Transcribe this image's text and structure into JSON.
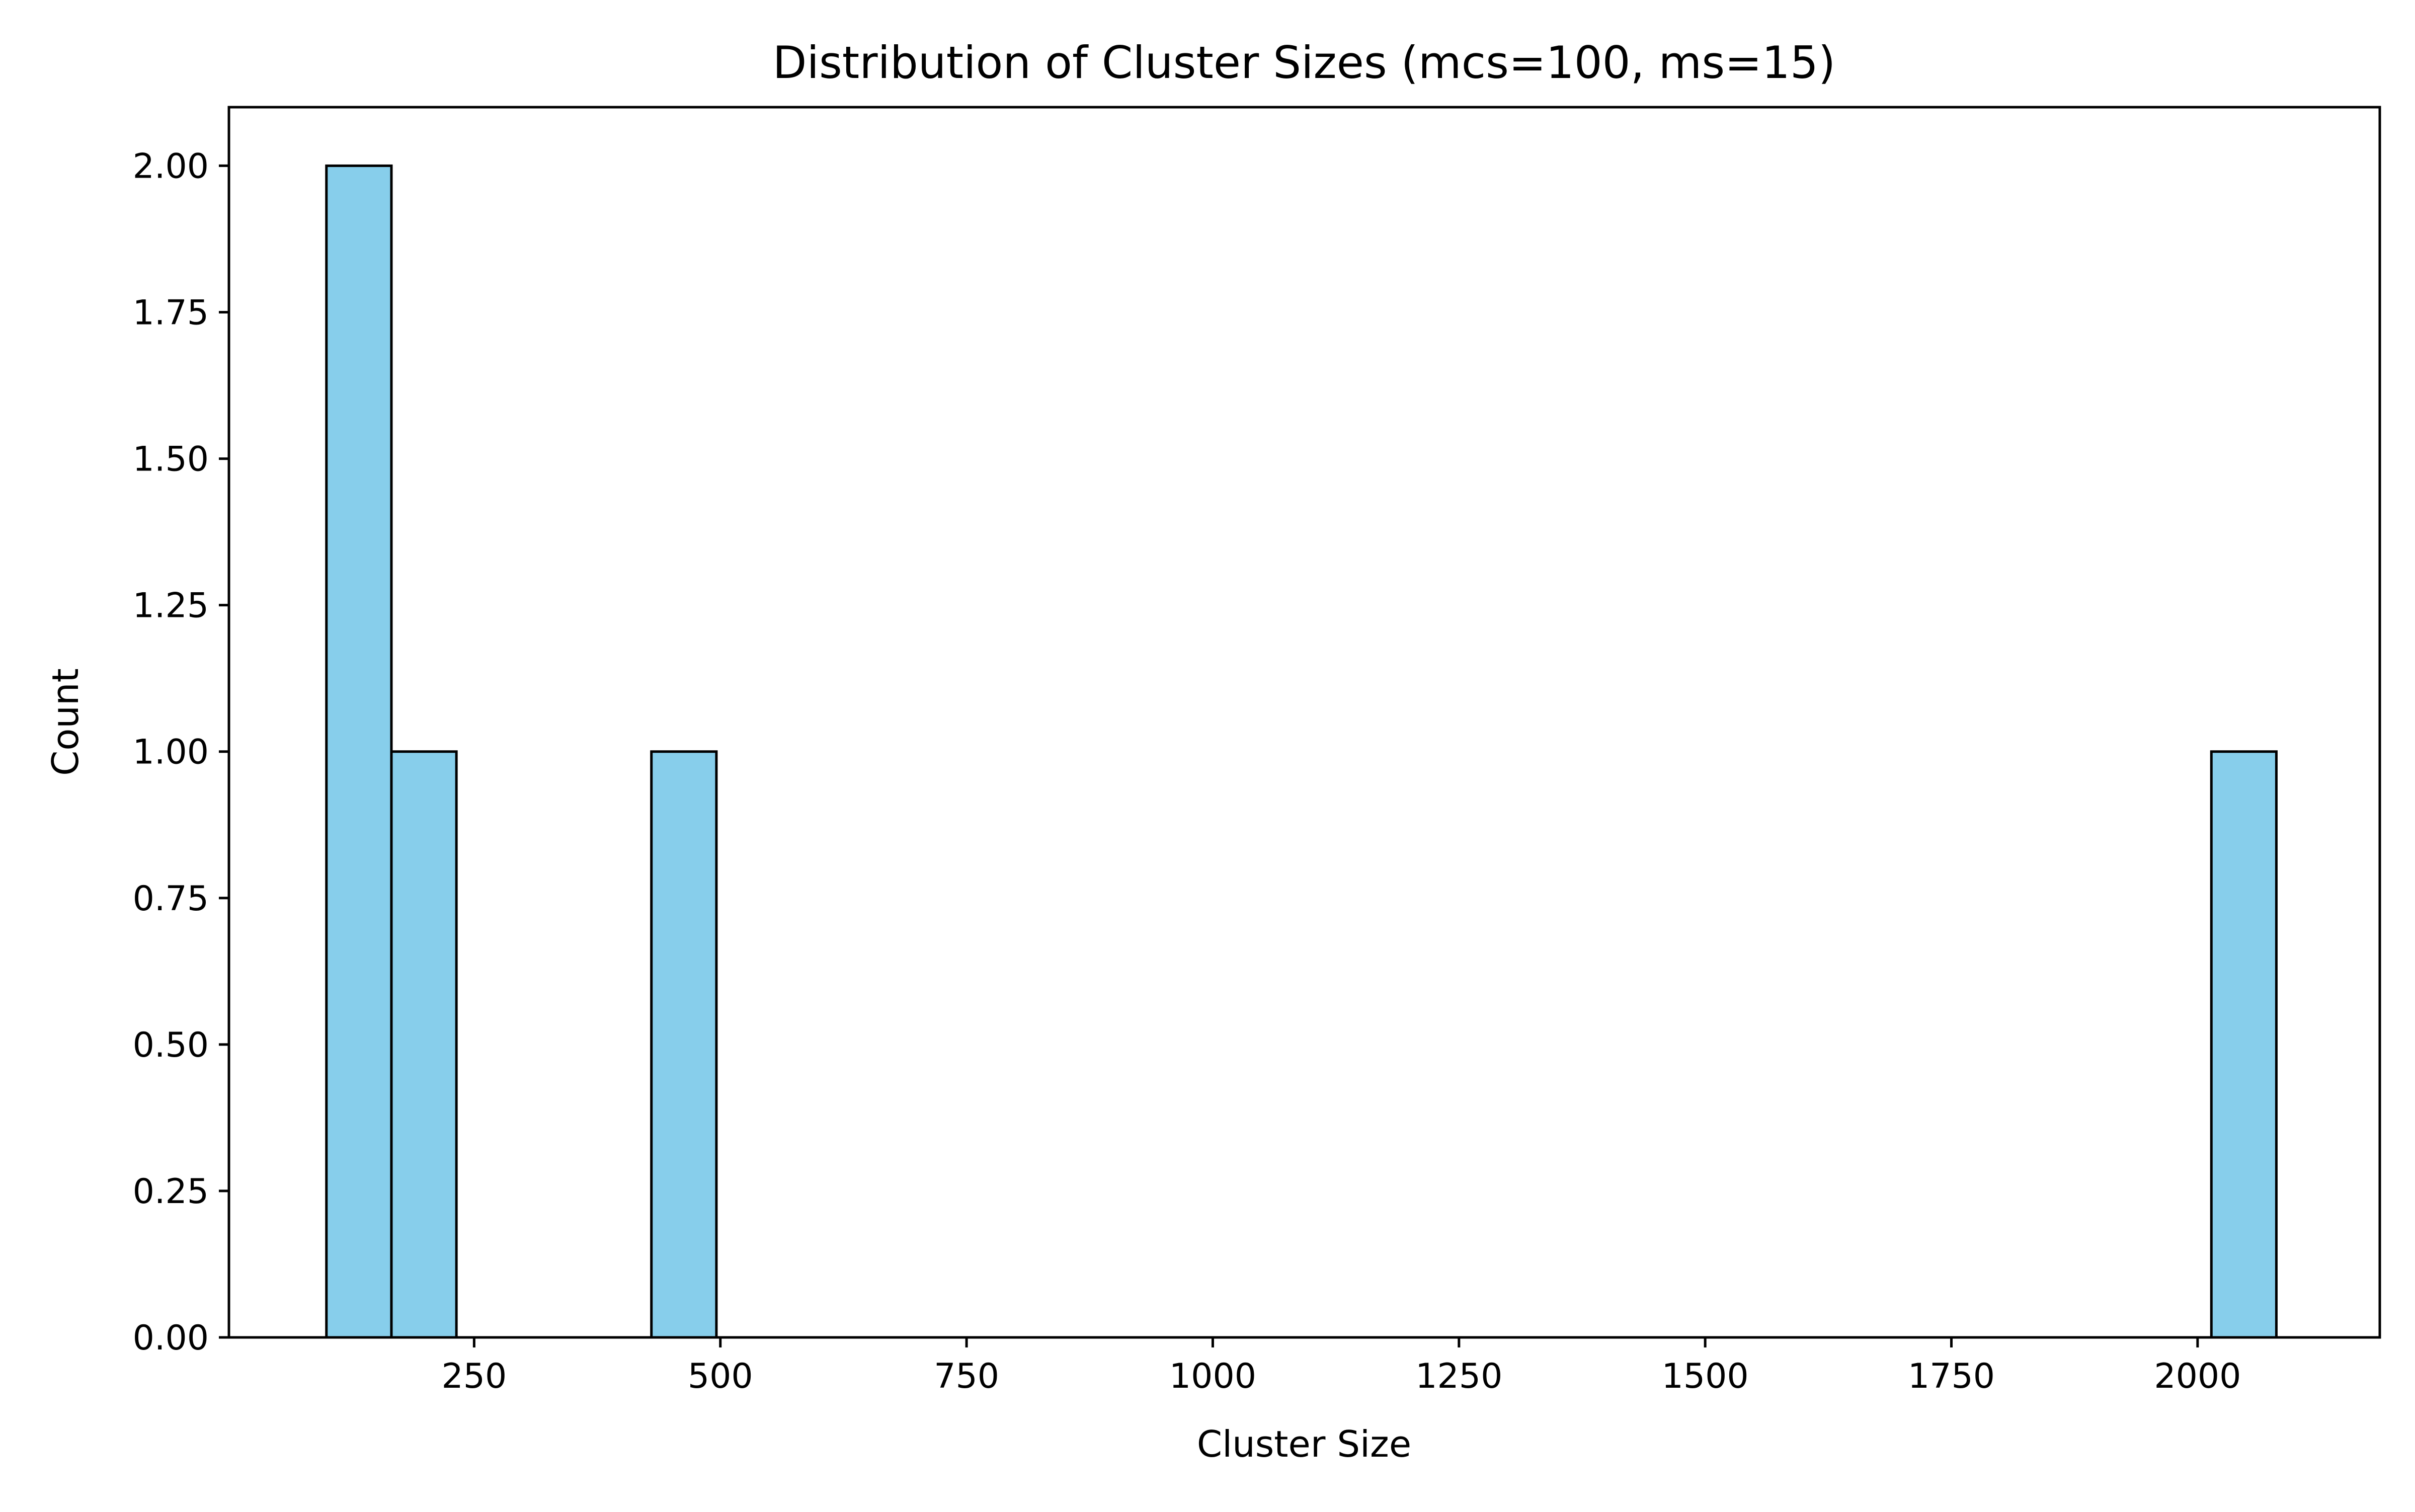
{
  "chart_data": {
    "type": "bar",
    "title": "Distribution of Cluster Sizes (mcs=100, ms=15)",
    "xlabel": "Cluster Size",
    "ylabel": "Count",
    "xlim": [
      1,
      2185
    ],
    "ylim": [
      0,
      2.1
    ],
    "x_ticks": [
      {
        "value": 250,
        "label": "250"
      },
      {
        "value": 500,
        "label": "500"
      },
      {
        "value": 750,
        "label": "750"
      },
      {
        "value": 1000,
        "label": "1000"
      },
      {
        "value": 1250,
        "label": "1250"
      },
      {
        "value": 1500,
        "label": "1500"
      },
      {
        "value": 1750,
        "label": "1750"
      },
      {
        "value": 2000,
        "label": "2000"
      }
    ],
    "y_ticks": [
      {
        "value": 0.0,
        "label": "0.00"
      },
      {
        "value": 0.25,
        "label": "0.25"
      },
      {
        "value": 0.5,
        "label": "0.50"
      },
      {
        "value": 0.75,
        "label": "0.75"
      },
      {
        "value": 1.0,
        "label": "1.00"
      },
      {
        "value": 1.25,
        "label": "1.25"
      },
      {
        "value": 1.5,
        "label": "1.50"
      },
      {
        "value": 1.75,
        "label": "1.75"
      },
      {
        "value": 2.0,
        "label": "2.00"
      }
    ],
    "bins": [
      {
        "x0": 100,
        "x1": 166,
        "count": 2
      },
      {
        "x0": 166,
        "x1": 232,
        "count": 1
      },
      {
        "x0": 232,
        "x1": 298,
        "count": 0
      },
      {
        "x0": 298,
        "x1": 364,
        "count": 0
      },
      {
        "x0": 364,
        "x1": 430,
        "count": 0
      },
      {
        "x0": 430,
        "x1": 496,
        "count": 1
      },
      {
        "x0": 496,
        "x1": 562,
        "count": 0
      },
      {
        "x0": 562,
        "x1": 628,
        "count": 0
      },
      {
        "x0": 628,
        "x1": 694,
        "count": 0
      },
      {
        "x0": 694,
        "x1": 760,
        "count": 0
      },
      {
        "x0": 760,
        "x1": 826,
        "count": 0
      },
      {
        "x0": 826,
        "x1": 892,
        "count": 0
      },
      {
        "x0": 892,
        "x1": 958,
        "count": 0
      },
      {
        "x0": 958,
        "x1": 1024,
        "count": 0
      },
      {
        "x0": 1024,
        "x1": 1090,
        "count": 0
      },
      {
        "x0": 1090,
        "x1": 1156,
        "count": 0
      },
      {
        "x0": 1156,
        "x1": 1222,
        "count": 0
      },
      {
        "x0": 1222,
        "x1": 1288,
        "count": 0
      },
      {
        "x0": 1288,
        "x1": 1354,
        "count": 0
      },
      {
        "x0": 1354,
        "x1": 1420,
        "count": 0
      },
      {
        "x0": 1420,
        "x1": 1486,
        "count": 0
      },
      {
        "x0": 1486,
        "x1": 1552,
        "count": 0
      },
      {
        "x0": 1552,
        "x1": 1618,
        "count": 0
      },
      {
        "x0": 1618,
        "x1": 1684,
        "count": 0
      },
      {
        "x0": 1684,
        "x1": 1750,
        "count": 0
      },
      {
        "x0": 1750,
        "x1": 1816,
        "count": 0
      },
      {
        "x0": 1816,
        "x1": 1882,
        "count": 0
      },
      {
        "x0": 1882,
        "x1": 1948,
        "count": 0
      },
      {
        "x0": 1948,
        "x1": 2014,
        "count": 0
      },
      {
        "x0": 2014,
        "x1": 2080,
        "count": 1
      }
    ],
    "bar_color": "#87ceeb",
    "edge_color": "#000000",
    "grid": false,
    "legend": false
  }
}
